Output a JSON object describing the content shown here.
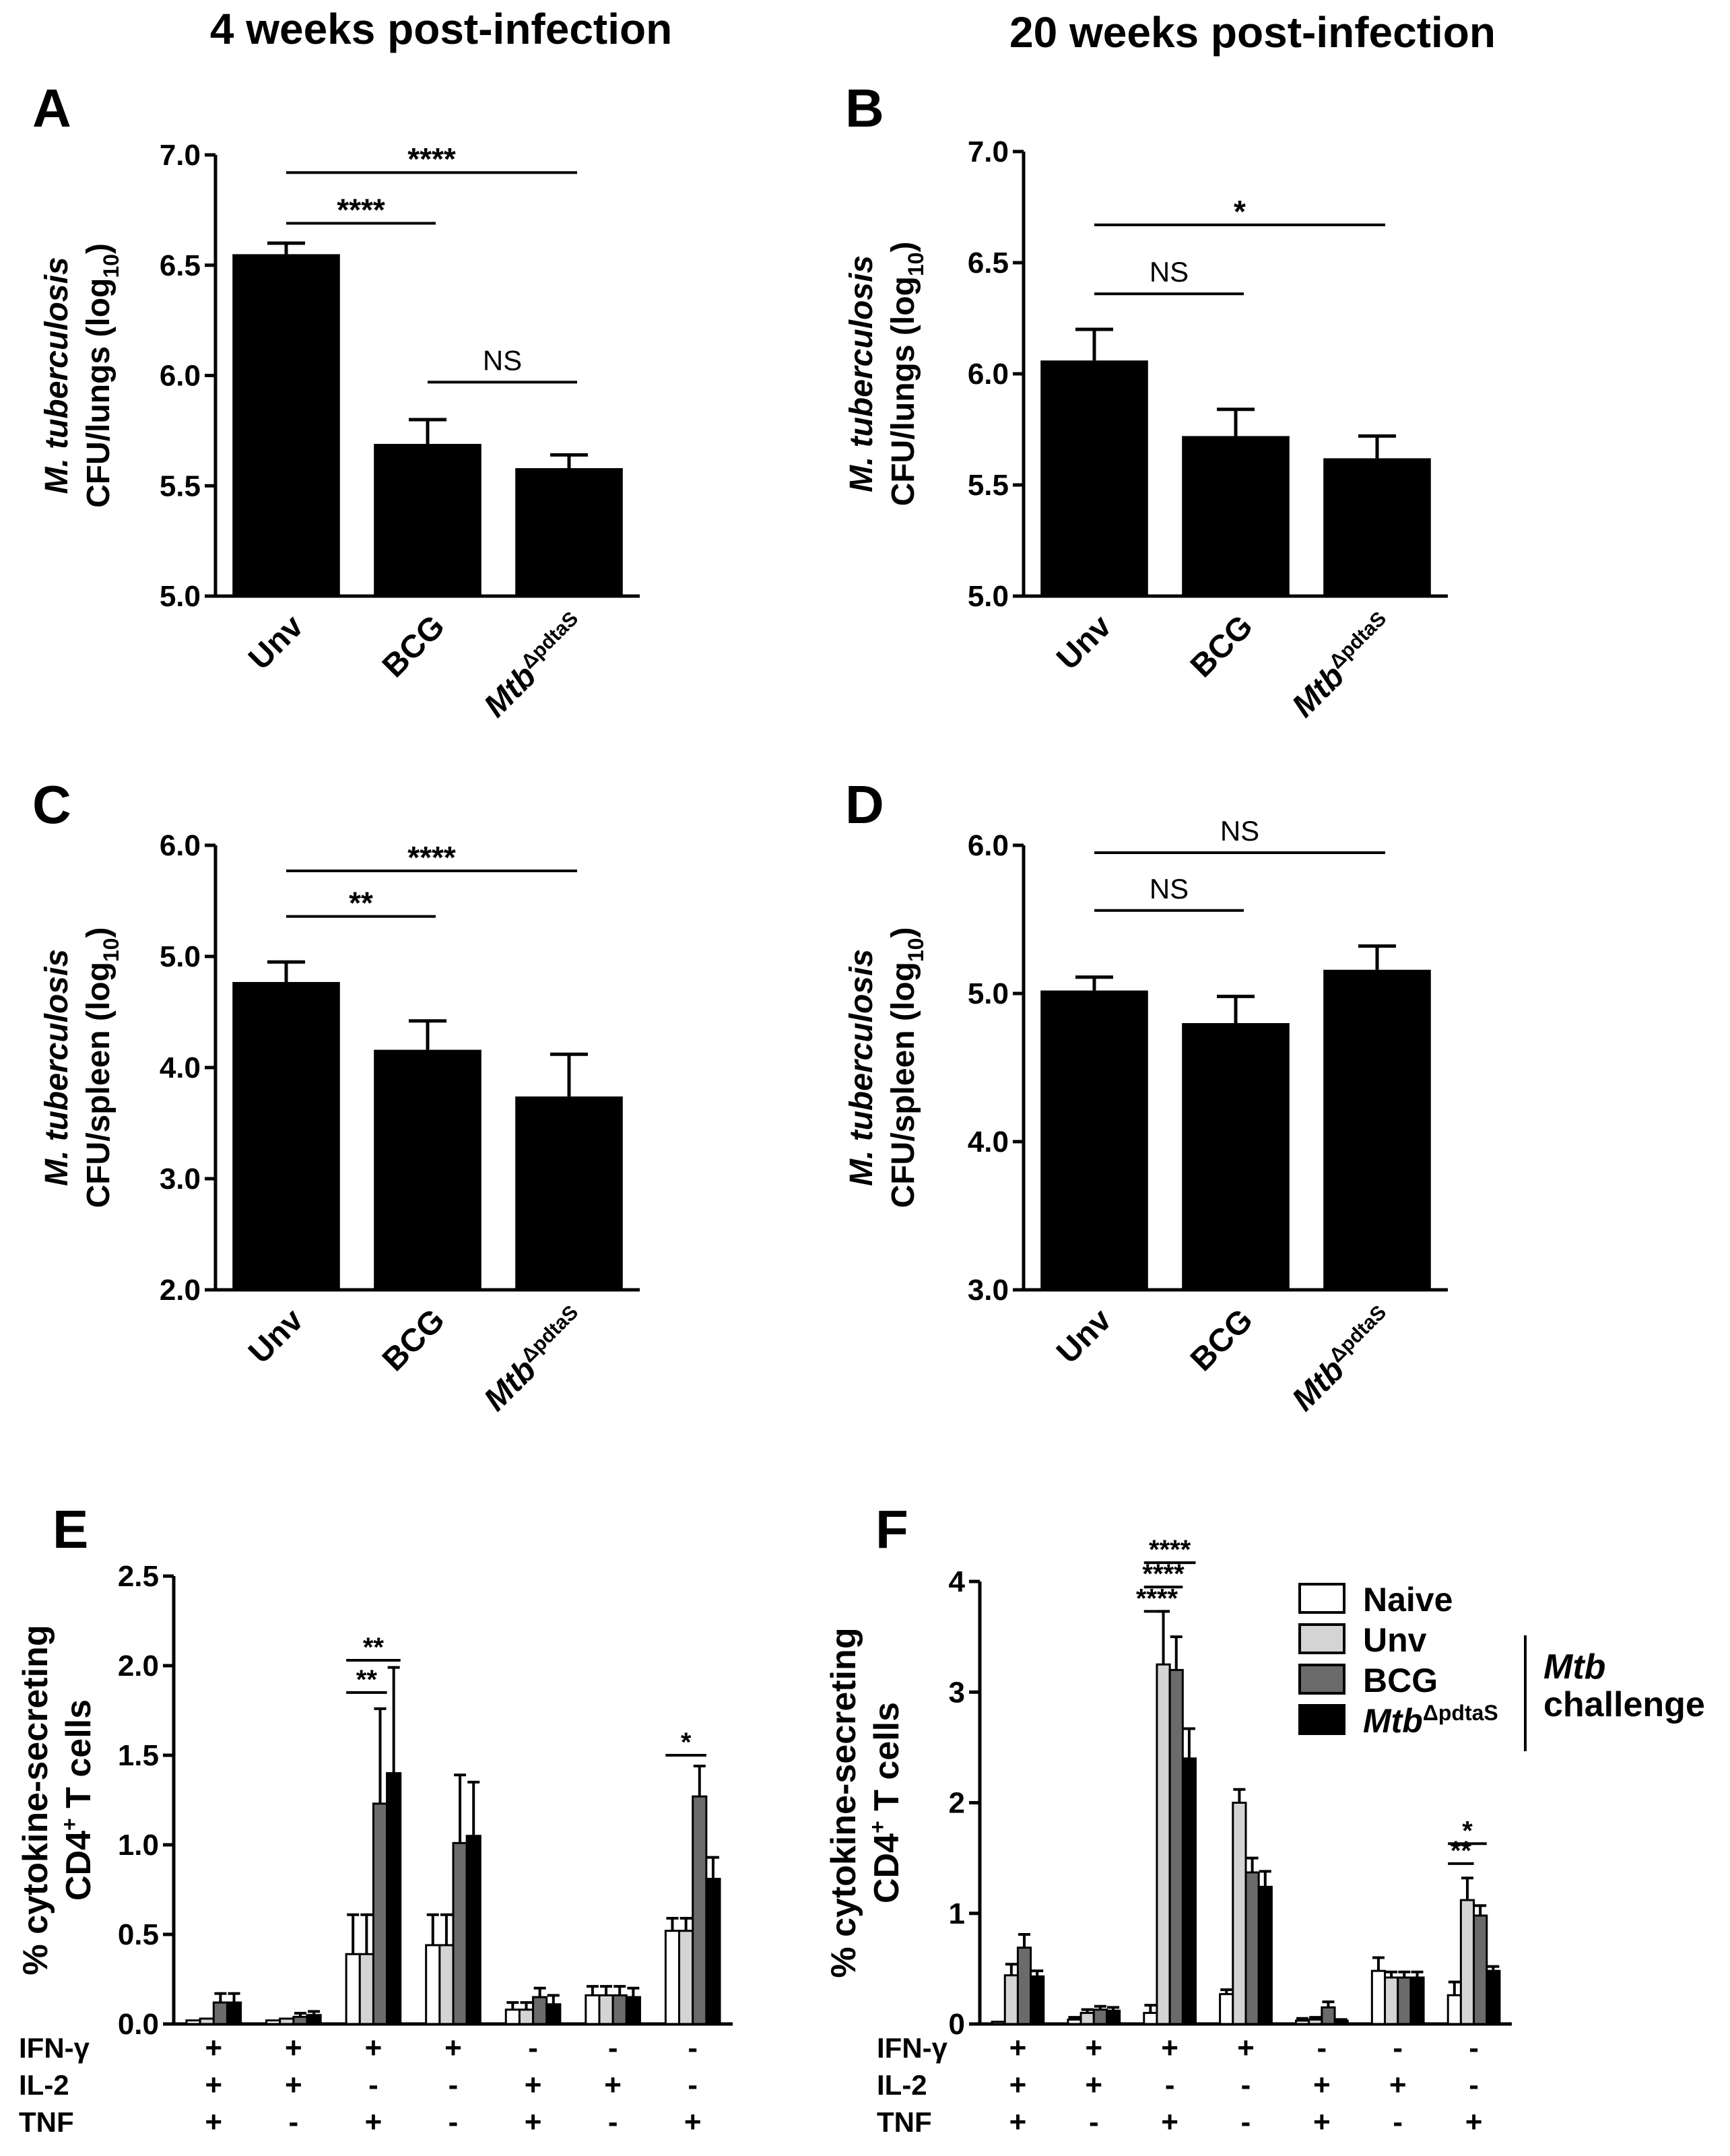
{
  "titles": {
    "left": "4 weeks post-infection",
    "right": "20 weeks post-infection"
  },
  "ylabels": {
    "organism": "M. tuberculosis",
    "lungs": "CFU/lungs (log",
    "spleen": "CFU/spleen (log",
    "log_sub": "10",
    "close": ")",
    "pct": "% cytokine-secreting",
    "cd4": "CD4",
    "cd4_sup": "+",
    "tcells": " T cells"
  },
  "categories": {
    "unv": "Unv",
    "bcg": "BCG",
    "mtb": "Mtb",
    "mtb_sup": "ΔpdtaS"
  },
  "row_labels": [
    "IFN-γ",
    "IL-2",
    "TNF"
  ],
  "row_patterns": [
    [
      "+",
      "+",
      "+",
      "+",
      "-",
      "-",
      "-"
    ],
    [
      "+",
      "+",
      "-",
      "-",
      "+",
      "+",
      "-"
    ],
    [
      "+",
      "-",
      "+",
      "-",
      "+",
      "-",
      "+"
    ]
  ],
  "legend": {
    "items": [
      {
        "label": "Naive",
        "color": "#ffffff"
      },
      {
        "label": "Unv",
        "color": "#d4d4d4"
      },
      {
        "label": "BCG",
        "color": "#6b6b6b"
      },
      {
        "label": "Mtb",
        "label_sup": "ΔpdtaS",
        "color": "#000000"
      }
    ],
    "bracket_title": "Mtb",
    "bracket_sub": "challenge"
  },
  "chart_data": [
    {
      "panel": "A",
      "type": "bar",
      "categories": [
        "Unv",
        "BCG",
        "MtbΔpdtaS"
      ],
      "values": [
        6.55,
        5.69,
        5.58
      ],
      "errors": [
        0.05,
        0.11,
        0.06
      ],
      "ylim": [
        5.0,
        7.0
      ],
      "ticks": [
        "5.0",
        "5.5",
        "6.0",
        "6.5",
        "7.0"
      ],
      "ylabel": "M. tuberculosis CFU/lungs (log10)",
      "significance": [
        {
          "from": 0,
          "to": 1,
          "label": "****",
          "y": 6.69
        },
        {
          "from": 0,
          "to": 2,
          "label": "****",
          "y": 6.92
        },
        {
          "from": 1,
          "to": 2,
          "label": "NS",
          "y": 5.97
        }
      ]
    },
    {
      "panel": "B",
      "type": "bar",
      "categories": [
        "Unv",
        "BCG",
        "MtbΔpdtaS"
      ],
      "values": [
        6.06,
        5.72,
        5.62
      ],
      "errors": [
        0.14,
        0.12,
        0.1
      ],
      "ylim": [
        5.0,
        7.0
      ],
      "ticks": [
        "5.0",
        "5.5",
        "6.0",
        "6.5",
        "7.0"
      ],
      "ylabel": "M. tuberculosis CFU/lungs (log10)",
      "significance": [
        {
          "from": 0,
          "to": 1,
          "label": "NS",
          "y": 6.36
        },
        {
          "from": 0,
          "to": 2,
          "label": "*",
          "y": 6.67
        }
      ]
    },
    {
      "panel": "C",
      "type": "bar",
      "categories": [
        "Unv",
        "BCG",
        "MtbΔpdtaS"
      ],
      "values": [
        4.77,
        4.16,
        3.74
      ],
      "errors": [
        0.18,
        0.26,
        0.38
      ],
      "ylim": [
        2.0,
        6.0
      ],
      "ticks": [
        "2.0",
        "3.0",
        "4.0",
        "5.0",
        "6.0"
      ],
      "ylabel": "M. tuberculosis CFU/spleen (log10)",
      "significance": [
        {
          "from": 0,
          "to": 1,
          "label": "**",
          "y": 5.36
        },
        {
          "from": 0,
          "to": 2,
          "label": "****",
          "y": 5.77
        }
      ]
    },
    {
      "panel": "D",
      "type": "bar",
      "categories": [
        "Unv",
        "BCG",
        "MtbΔpdtaS"
      ],
      "values": [
        5.02,
        4.8,
        5.16
      ],
      "errors": [
        0.09,
        0.18,
        0.16
      ],
      "ylim": [
        3.0,
        6.0
      ],
      "ticks": [
        "3.0",
        "4.0",
        "5.0",
        "6.0"
      ],
      "ylabel": "M. tuberculosis CFU/spleen (log10)",
      "significance": [
        {
          "from": 0,
          "to": 1,
          "label": "NS",
          "y": 5.56
        },
        {
          "from": 0,
          "to": 2,
          "label": "NS",
          "y": 5.95
        }
      ]
    },
    {
      "panel": "E",
      "type": "bar",
      "groups": [
        "IFN-γ+ IL-2+ TNF+",
        "IFN-γ+ IL-2+ TNF-",
        "IFN-γ+ IL-2- TNF+",
        "IFN-γ+ IL-2- TNF-",
        "IFN-γ- IL-2+ TNF+",
        "IFN-γ- IL-2+ TNF-",
        "IFN-γ- IL-2- TNF+"
      ],
      "series": [
        {
          "name": "Naive",
          "values": [
            0.02,
            0.02,
            0.39,
            0.44,
            0.08,
            0.16,
            0.52
          ],
          "errors": [
            0.0,
            0.0,
            0.22,
            0.17,
            0.04,
            0.05,
            0.07
          ]
        },
        {
          "name": "Unv",
          "values": [
            0.03,
            0.03,
            0.39,
            0.44,
            0.08,
            0.16,
            0.52
          ],
          "errors": [
            0.0,
            0.0,
            0.22,
            0.17,
            0.04,
            0.05,
            0.07
          ]
        },
        {
          "name": "BCG",
          "values": [
            0.12,
            0.04,
            1.23,
            1.01,
            0.15,
            0.16,
            1.27
          ],
          "errors": [
            0.05,
            0.02,
            0.53,
            0.38,
            0.05,
            0.05,
            0.17
          ]
        },
        {
          "name": "MtbΔpdtaS",
          "values": [
            0.12,
            0.05,
            1.4,
            1.05,
            0.11,
            0.15,
            0.81
          ],
          "errors": [
            0.05,
            0.02,
            0.59,
            0.3,
            0.05,
            0.05,
            0.12
          ]
        }
      ],
      "ylim": [
        0,
        2.5
      ],
      "ticks": [
        "0.0",
        "0.5",
        "1.0",
        "1.5",
        "2.0",
        "2.5"
      ],
      "ylabel": "% cytokine-secreting CD4+ T cells",
      "significance": [
        {
          "group": 2,
          "from": 0,
          "to": 2,
          "label": "**",
          "y": 1.85
        },
        {
          "group": 2,
          "from": 0,
          "to": 3,
          "label": "**",
          "y": 2.03
        },
        {
          "group": 6,
          "from": 0,
          "to": 2,
          "label": "*",
          "y": 1.5
        }
      ]
    },
    {
      "panel": "F",
      "type": "bar",
      "groups": [
        "IFN-γ+ IL-2+ TNF+",
        "IFN-γ+ IL-2+ TNF-",
        "IFN-γ+ IL-2- TNF+",
        "IFN-γ+ IL-2- TNF-",
        "IFN-γ- IL-2+ TNF+",
        "IFN-γ- IL-2+ TNF-",
        "IFN-γ- IL-2- TNF+"
      ],
      "series": [
        {
          "name": "Naive",
          "values": [
            0.02,
            0.04,
            0.1,
            0.27,
            0.03,
            0.48,
            0.26
          ],
          "errors": [
            0.0,
            0.02,
            0.07,
            0.04,
            0.02,
            0.12,
            0.12
          ]
        },
        {
          "name": "Unv",
          "values": [
            0.44,
            0.1,
            3.25,
            2.0,
            0.04,
            0.42,
            1.12
          ],
          "errors": [
            0.1,
            0.03,
            0.48,
            0.12,
            0.02,
            0.05,
            0.2
          ]
        },
        {
          "name": "BCG",
          "values": [
            0.69,
            0.13,
            3.2,
            1.37,
            0.15,
            0.42,
            0.98
          ],
          "errors": [
            0.12,
            0.03,
            0.3,
            0.13,
            0.05,
            0.05,
            0.09
          ]
        },
        {
          "name": "MtbΔpdtaS",
          "values": [
            0.43,
            0.12,
            2.4,
            1.24,
            0.03,
            0.42,
            0.48
          ],
          "errors": [
            0.05,
            0.03,
            0.27,
            0.14,
            0.01,
            0.05,
            0.04
          ]
        }
      ],
      "ylim": [
        0,
        4
      ],
      "ticks": [
        "0",
        "1",
        "2",
        "3",
        "4"
      ],
      "ylabel": "% cytokine-secreting CD4+ T cells",
      "significance": [
        {
          "group": 2,
          "from": 0,
          "to": 1,
          "label": "****",
          "y": 3.73
        },
        {
          "group": 2,
          "from": 0,
          "to": 2,
          "label": "****",
          "y": 3.95
        },
        {
          "group": 2,
          "from": 0,
          "to": 3,
          "label": "****",
          "y": 4.17
        },
        {
          "group": 6,
          "from": 0,
          "to": 1,
          "label": "**",
          "y": 1.45
        },
        {
          "group": 6,
          "from": 0,
          "to": 2,
          "label": "*",
          "y": 1.63
        }
      ]
    }
  ]
}
